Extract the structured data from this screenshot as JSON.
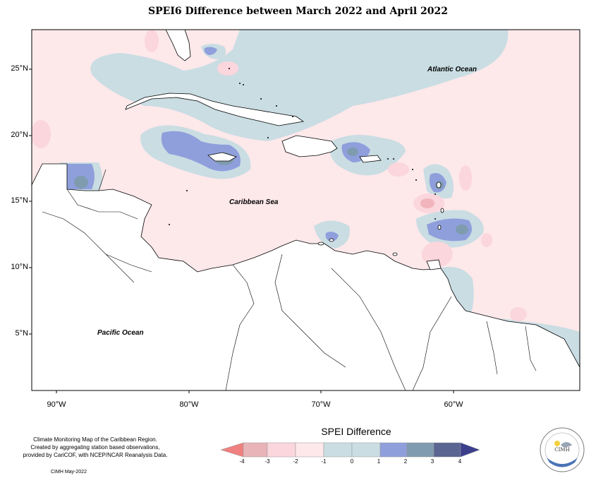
{
  "title": "SPEI6 Difference between March 2022 and April 2022",
  "map": {
    "background_color": "#fde8ea",
    "land_color": "#ffffff",
    "latitude_labels": [
      "25°N",
      "20°N",
      "15°N",
      "10°N",
      "5°N"
    ],
    "longitude_labels": [
      "90°W",
      "80°W",
      "70°W",
      "60°W"
    ],
    "sea_labels": {
      "atlantic": "Atlantic Ocean",
      "caribbean": "Caribbean Sea",
      "pacific": "Pacific Ocean"
    }
  },
  "footer": {
    "line1": "Climate Monitoring Map of the Caribbean Region.",
    "line2": "Created by aggregating station based observations,",
    "line3": "provided by CariCOF, with NCEP/NCAR Reanalysis Data.",
    "credit": "CIMH May-2022"
  },
  "legend": {
    "title": "SPEI Difference",
    "ticks": [
      "-4",
      "-3",
      "-2",
      "-1",
      "0",
      "1",
      "2",
      "3",
      "4"
    ],
    "colors": [
      "#f08080",
      "#e8b4b8",
      "#fbd6dc",
      "#fde8ea",
      "#c9dde3",
      "#8f9fdc",
      "#7f9bb0",
      "#5a6591",
      "#3b3f8c"
    ]
  },
  "logo": {
    "name": "CIMH",
    "text": "CIMH"
  }
}
